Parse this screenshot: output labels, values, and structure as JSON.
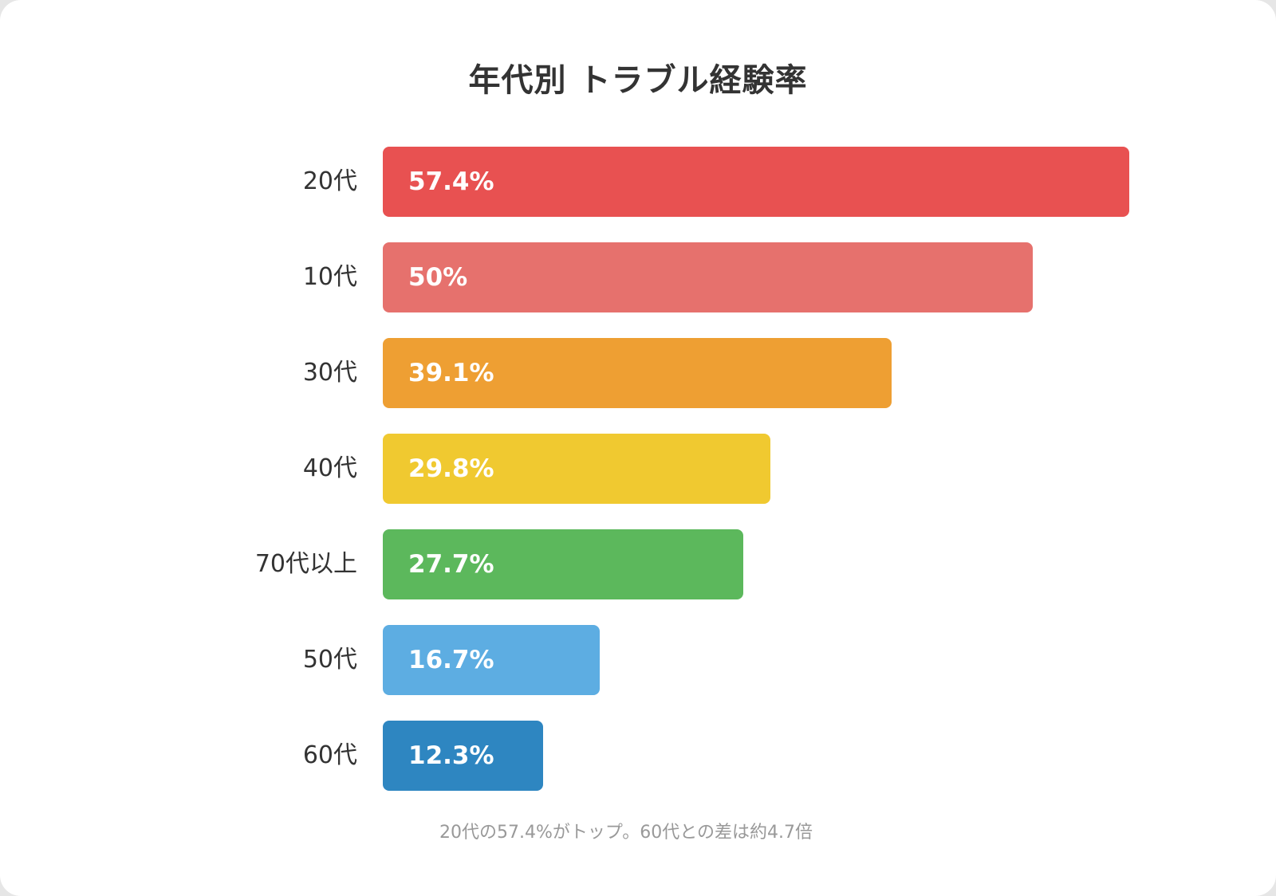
{
  "chart_data": {
    "type": "bar",
    "orientation": "horizontal",
    "title": "年代別 トラブル経験率",
    "categories": [
      "20代",
      "10代",
      "30代",
      "40代",
      "70代以上",
      "50代",
      "60代"
    ],
    "values": [
      57.4,
      50,
      39.1,
      29.8,
      27.7,
      16.7,
      12.3
    ],
    "value_labels": [
      "57.4%",
      "50%",
      "39.1%",
      "29.8%",
      "27.7%",
      "16.7%",
      "12.3%"
    ],
    "colors": [
      "#e85151",
      "#e6716d",
      "#ee9f33",
      "#f0c930",
      "#5cb85c",
      "#5dade2",
      "#2e86c1"
    ],
    "xlim": [
      0,
      57.4
    ],
    "grid": false,
    "legend": "none"
  },
  "footnote": "20代の57.4%がトップ。60代との差は約4.7倍"
}
